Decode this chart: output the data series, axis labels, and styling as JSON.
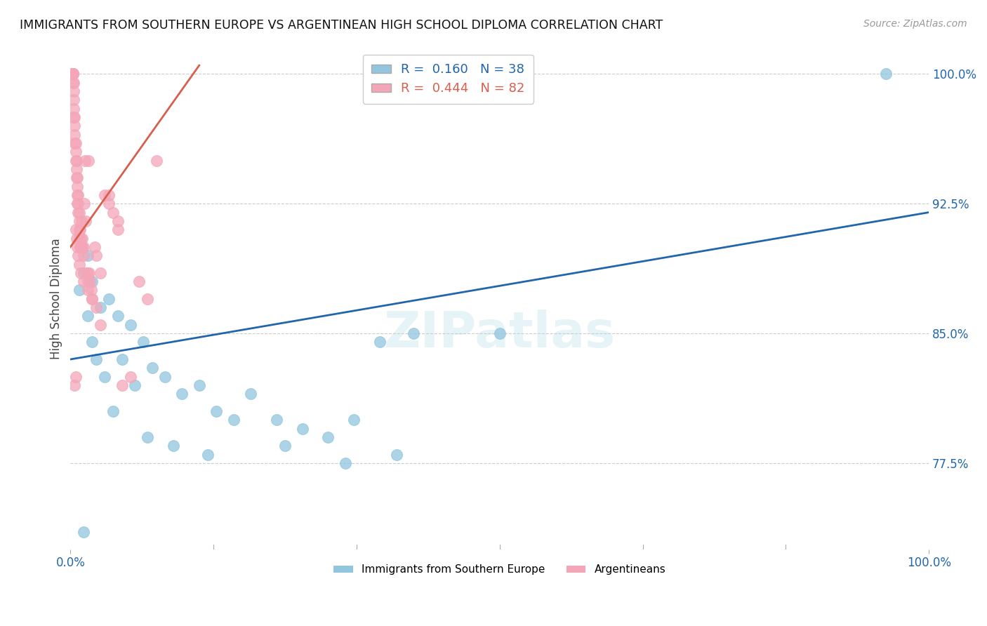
{
  "title": "IMMIGRANTS FROM SOUTHERN EUROPE VS ARGENTINEAN HIGH SCHOOL DIPLOMA CORRELATION CHART",
  "source": "Source: ZipAtlas.com",
  "ylabel": "High School Diploma",
  "watermark": "ZIPatlas",
  "xlim": [
    0,
    100
  ],
  "ylim": [
    72.5,
    101.5
  ],
  "yticks": [
    77.5,
    85.0,
    92.5,
    100.0
  ],
  "xticks": [
    0,
    100
  ],
  "xticklabels": [
    "0.0%",
    "100.0%"
  ],
  "yticklabels": [
    "77.5%",
    "85.0%",
    "92.5%",
    "100.0%"
  ],
  "grid_color": "#cccccc",
  "blue_color": "#92c5de",
  "pink_color": "#f4a6b8",
  "blue_line_color": "#2166ac",
  "pink_line_color": "#d6604d",
  "blue_R": 0.16,
  "blue_N": 38,
  "pink_R": 0.444,
  "pink_N": 82,
  "blue_trend_x": [
    0,
    100
  ],
  "blue_trend_y": [
    83.5,
    92.0
  ],
  "pink_trend_x": [
    0,
    15
  ],
  "pink_trend_y": [
    90.0,
    100.5
  ],
  "background_color": "#ffffff",
  "legend_label_blue": "Immigrants from Southern Europe",
  "legend_label_pink": "Argentineans",
  "blue_scatter_x": [
    1.0,
    1.5,
    2.0,
    2.5,
    3.5,
    4.5,
    5.5,
    7.0,
    8.5,
    9.5,
    11.0,
    13.0,
    15.0,
    17.0,
    19.0,
    21.0,
    24.0,
    27.0,
    30.0,
    33.0,
    36.0,
    40.0,
    50.0,
    95.0,
    2.0,
    2.5,
    3.0,
    4.0,
    5.0,
    6.0,
    7.5,
    9.0,
    12.0,
    16.0,
    25.0,
    32.0,
    38.0,
    1.5
  ],
  "blue_scatter_y": [
    87.5,
    88.5,
    89.5,
    88.0,
    86.5,
    87.0,
    86.0,
    85.5,
    84.5,
    83.0,
    82.5,
    81.5,
    82.0,
    80.5,
    80.0,
    81.5,
    80.0,
    79.5,
    79.0,
    80.0,
    84.5,
    85.0,
    85.0,
    100.0,
    86.0,
    84.5,
    83.5,
    82.5,
    80.5,
    83.5,
    82.0,
    79.0,
    78.5,
    78.0,
    78.5,
    77.5,
    78.0,
    73.5
  ],
  "pink_scatter_x": [
    0.2,
    0.2,
    0.2,
    0.3,
    0.3,
    0.3,
    0.3,
    0.3,
    0.4,
    0.4,
    0.4,
    0.4,
    0.4,
    0.5,
    0.5,
    0.5,
    0.5,
    0.6,
    0.6,
    0.6,
    0.7,
    0.7,
    0.7,
    0.8,
    0.8,
    0.8,
    0.8,
    0.9,
    0.9,
    0.9,
    1.0,
    1.0,
    1.0,
    1.0,
    1.1,
    1.1,
    1.2,
    1.2,
    1.3,
    1.3,
    1.4,
    1.4,
    1.5,
    1.5,
    1.6,
    1.7,
    1.8,
    1.9,
    2.0,
    2.0,
    2.1,
    2.2,
    2.3,
    2.4,
    2.5,
    2.8,
    3.0,
    3.5,
    4.0,
    4.5,
    5.0,
    5.5,
    6.0,
    7.0,
    8.0,
    10.0,
    0.6,
    0.7,
    0.8,
    0.9,
    1.0,
    1.2,
    1.5,
    2.0,
    2.5,
    3.0,
    0.5,
    0.6,
    3.5,
    4.5,
    5.5,
    9.0
  ],
  "pink_scatter_y": [
    100.0,
    100.0,
    100.0,
    100.0,
    100.0,
    100.0,
    100.0,
    99.5,
    99.5,
    99.0,
    98.5,
    98.0,
    97.5,
    97.5,
    97.0,
    96.5,
    96.0,
    96.0,
    95.5,
    95.0,
    95.0,
    94.5,
    94.0,
    94.0,
    93.5,
    93.0,
    92.5,
    93.0,
    92.5,
    92.0,
    92.0,
    91.5,
    91.0,
    90.5,
    91.0,
    90.0,
    90.5,
    90.0,
    91.5,
    90.0,
    90.5,
    90.0,
    90.0,
    89.5,
    92.5,
    95.0,
    91.5,
    88.5,
    88.5,
    88.0,
    95.0,
    88.5,
    88.0,
    87.5,
    87.0,
    90.0,
    89.5,
    88.5,
    93.0,
    93.0,
    92.0,
    91.5,
    82.0,
    82.5,
    88.0,
    95.0,
    91.0,
    90.5,
    90.0,
    89.5,
    89.0,
    88.5,
    88.0,
    87.5,
    87.0,
    86.5,
    82.0,
    82.5,
    85.5,
    92.5,
    91.0,
    87.0
  ]
}
